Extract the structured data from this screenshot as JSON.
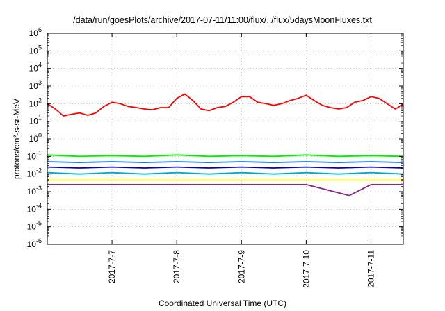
{
  "chart_data": {
    "type": "line",
    "title": "/data/run/goesPlots/archive/2017-07-11/11:00/flux/../flux/5daysMoonFluxes.txt",
    "xlabel": "Coordinated Universal Time (UTC)",
    "ylabel": "protons/cm²-s-sr-MeV",
    "yscale": "log",
    "ylim": [
      1e-06,
      1000000.0
    ],
    "xlim": [
      "2017-07-06T00:00",
      "2017-07-11T12:00"
    ],
    "grid": true,
    "x_ticks": [
      "2017-7-7",
      "2017-7-8",
      "2017-7-9",
      "2017-7-10",
      "2017-7-11"
    ],
    "y_ticks": [
      {
        "base": "10",
        "exp": "-6"
      },
      {
        "base": "10",
        "exp": "-5"
      },
      {
        "base": "10",
        "exp": "-4"
      },
      {
        "base": "10",
        "exp": "-3"
      },
      {
        "base": "10",
        "exp": "-2"
      },
      {
        "base": "10",
        "exp": "-1"
      },
      {
        "base": "10",
        "exp": "0"
      },
      {
        "base": "10",
        "exp": "1"
      },
      {
        "base": "10",
        "exp": "2"
      },
      {
        "base": "10",
        "exp": "3"
      },
      {
        "base": "10",
        "exp": "4"
      },
      {
        "base": "10",
        "exp": "5"
      },
      {
        "base": "10",
        "exp": "6"
      }
    ],
    "series": [
      {
        "color": "#ff0000",
        "x": [
          "2017-07-06T00:00",
          "2017-07-06T03:00",
          "2017-07-06T06:00",
          "2017-07-06T09:00",
          "2017-07-06T12:00",
          "2017-07-06T15:00",
          "2017-07-06T18:00",
          "2017-07-06T21:00",
          "2017-07-07T00:00",
          "2017-07-07T03:00",
          "2017-07-07T06:00",
          "2017-07-07T09:00",
          "2017-07-07T12:00",
          "2017-07-07T15:00",
          "2017-07-07T18:00",
          "2017-07-07T21:00",
          "2017-07-08T00:00",
          "2017-07-08T03:00",
          "2017-07-08T06:00",
          "2017-07-08T09:00",
          "2017-07-08T12:00",
          "2017-07-08T15:00",
          "2017-07-08T18:00",
          "2017-07-08T21:00",
          "2017-07-09T00:00",
          "2017-07-09T03:00",
          "2017-07-09T06:00",
          "2017-07-09T09:00",
          "2017-07-09T12:00",
          "2017-07-09T15:00",
          "2017-07-09T18:00",
          "2017-07-09T21:00",
          "2017-07-10T00:00",
          "2017-07-10T03:00",
          "2017-07-10T06:00",
          "2017-07-10T09:00",
          "2017-07-10T12:00",
          "2017-07-10T15:00",
          "2017-07-10T18:00",
          "2017-07-10T21:00",
          "2017-07-11T00:00",
          "2017-07-11T03:00",
          "2017-07-11T06:00",
          "2017-07-11T09:00",
          "2017-07-11T12:00"
        ],
        "y": [
          100,
          50,
          20,
          25,
          30,
          22,
          30,
          70,
          120,
          100,
          70,
          60,
          50,
          45,
          60,
          60,
          200,
          350,
          150,
          50,
          40,
          60,
          70,
          120,
          250,
          250,
          120,
          100,
          80,
          100,
          150,
          200,
          300,
          150,
          80,
          60,
          50,
          60,
          120,
          150,
          250,
          200,
          100,
          50,
          90
        ]
      },
      {
        "color": "#00ee00",
        "x": [
          "2017-07-06T00:00",
          "2017-07-06T12:00",
          "2017-07-07T00:00",
          "2017-07-07T12:00",
          "2017-07-08T00:00",
          "2017-07-08T12:00",
          "2017-07-09T00:00",
          "2017-07-09T12:00",
          "2017-07-10T00:00",
          "2017-07-10T12:00",
          "2017-07-11T00:00",
          "2017-07-11T12:00"
        ],
        "y": [
          0.12,
          0.1,
          0.11,
          0.1,
          0.12,
          0.1,
          0.11,
          0.1,
          0.12,
          0.1,
          0.11,
          0.1
        ]
      },
      {
        "color": "#1a6bff",
        "x": [
          "2017-07-06T00:00",
          "2017-07-06T12:00",
          "2017-07-07T00:00",
          "2017-07-07T12:00",
          "2017-07-08T00:00",
          "2017-07-08T12:00",
          "2017-07-09T00:00",
          "2017-07-09T12:00",
          "2017-07-10T00:00",
          "2017-07-10T12:00",
          "2017-07-11T00:00",
          "2017-07-11T12:00"
        ],
        "y": [
          0.05,
          0.045,
          0.05,
          0.045,
          0.05,
          0.045,
          0.05,
          0.045,
          0.05,
          0.045,
          0.05,
          0.045
        ]
      },
      {
        "color": "#0000cc",
        "x": [
          "2017-07-06T00:00",
          "2017-07-06T12:00",
          "2017-07-07T00:00",
          "2017-07-07T12:00",
          "2017-07-08T00:00",
          "2017-07-08T12:00",
          "2017-07-09T00:00",
          "2017-07-09T12:00",
          "2017-07-10T00:00",
          "2017-07-10T12:00",
          "2017-07-11T00:00",
          "2017-07-11T12:00"
        ],
        "y": [
          0.025,
          0.022,
          0.025,
          0.022,
          0.025,
          0.022,
          0.025,
          0.022,
          0.025,
          0.022,
          0.025,
          0.022
        ]
      },
      {
        "color": "#00aacc",
        "x": [
          "2017-07-06T00:00",
          "2017-07-06T12:00",
          "2017-07-07T00:00",
          "2017-07-07T12:00",
          "2017-07-08T00:00",
          "2017-07-08T12:00",
          "2017-07-09T00:00",
          "2017-07-09T12:00",
          "2017-07-10T00:00",
          "2017-07-10T12:00",
          "2017-07-11T00:00",
          "2017-07-11T12:00"
        ],
        "y": [
          0.012,
          0.01,
          0.012,
          0.01,
          0.012,
          0.01,
          0.012,
          0.01,
          0.012,
          0.01,
          0.012,
          0.01
        ]
      },
      {
        "color": "#ffff00",
        "x": [
          "2017-07-06T00:00",
          "2017-07-07T00:00",
          "2017-07-08T00:00",
          "2017-07-09T00:00",
          "2017-07-10T00:00",
          "2017-07-11T00:00",
          "2017-07-11T12:00"
        ],
        "y": [
          0.0045,
          0.0045,
          0.0045,
          0.0045,
          0.0045,
          0.0045,
          0.0045
        ]
      },
      {
        "color": "#882288",
        "x": [
          "2017-07-06T00:00",
          "2017-07-07T00:00",
          "2017-07-08T00:00",
          "2017-07-09T00:00",
          "2017-07-10T00:00",
          "2017-07-10T16:00",
          "2017-07-11T00:00",
          "2017-07-11T12:00"
        ],
        "y": [
          0.0025,
          0.0025,
          0.0025,
          0.0025,
          0.0025,
          0.0006,
          0.0025,
          0.0025
        ]
      }
    ]
  }
}
